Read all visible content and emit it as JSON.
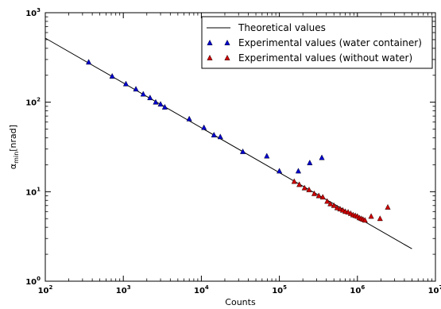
{
  "chart_data": {
    "type": "scatter",
    "xlabel": "Counts",
    "ylabel_main": "α",
    "ylabel_sub": "min",
    "ylabel_unit": "[nrad]",
    "xscale": "log",
    "yscale": "log",
    "xlim": [
      100,
      10000000
    ],
    "ylim": [
      1,
      1000
    ],
    "x_tick_labels": [
      {
        "base": "10",
        "exp": "2"
      },
      {
        "base": "10",
        "exp": "3"
      },
      {
        "base": "10",
        "exp": "4"
      },
      {
        "base": "10",
        "exp": "5"
      },
      {
        "base": "10",
        "exp": "6"
      },
      {
        "base": "10",
        "exp": "7"
      }
    ],
    "y_tick_labels": [
      {
        "base": "10",
        "exp": "0"
      },
      {
        "base": "10",
        "exp": "1"
      },
      {
        "base": "10",
        "exp": "2"
      },
      {
        "base": "10",
        "exp": "3"
      }
    ],
    "legend_position": "top-right",
    "series": [
      {
        "name": "Theoretical values",
        "kind": "line",
        "color": "#000000",
        "x": [
          100,
          5000000
        ],
        "y": [
          520,
          2.3
        ]
      },
      {
        "name": "Experimental values (water container)",
        "kind": "marker",
        "marker": "triangle",
        "color": "#0000cc",
        "x": [
          360,
          720,
          1080,
          1450,
          1800,
          2200,
          2600,
          3000,
          3400,
          7000,
          10800,
          14500,
          17500,
          34000,
          69000,
          100000,
          175000,
          245000,
          350000
        ],
        "y": [
          280,
          195,
          160,
          140,
          123,
          112,
          100,
          95,
          88,
          65,
          52,
          43,
          41,
          28,
          25,
          17,
          17,
          21,
          24
        ]
      },
      {
        "name": "Experimental values (without water)",
        "kind": "marker",
        "marker": "triangle",
        "color": "#cc0000",
        "x": [
          155000,
          180000,
          210000,
          240000,
          280000,
          320000,
          360000,
          410000,
          450000,
          500000,
          550000,
          600000,
          650000,
          700000,
          760000,
          820000,
          880000,
          940000,
          1000000,
          1060000,
          1120000,
          1180000,
          1250000,
          1500000,
          1950000,
          2450000
        ],
        "y": [
          13,
          12,
          11,
          10.5,
          9.5,
          9,
          8.7,
          7.8,
          7.3,
          7,
          6.6,
          6.4,
          6.2,
          6,
          5.9,
          5.7,
          5.5,
          5.4,
          5.3,
          5.1,
          5,
          4.9,
          4.8,
          5.3,
          5,
          6.7
        ]
      }
    ]
  }
}
